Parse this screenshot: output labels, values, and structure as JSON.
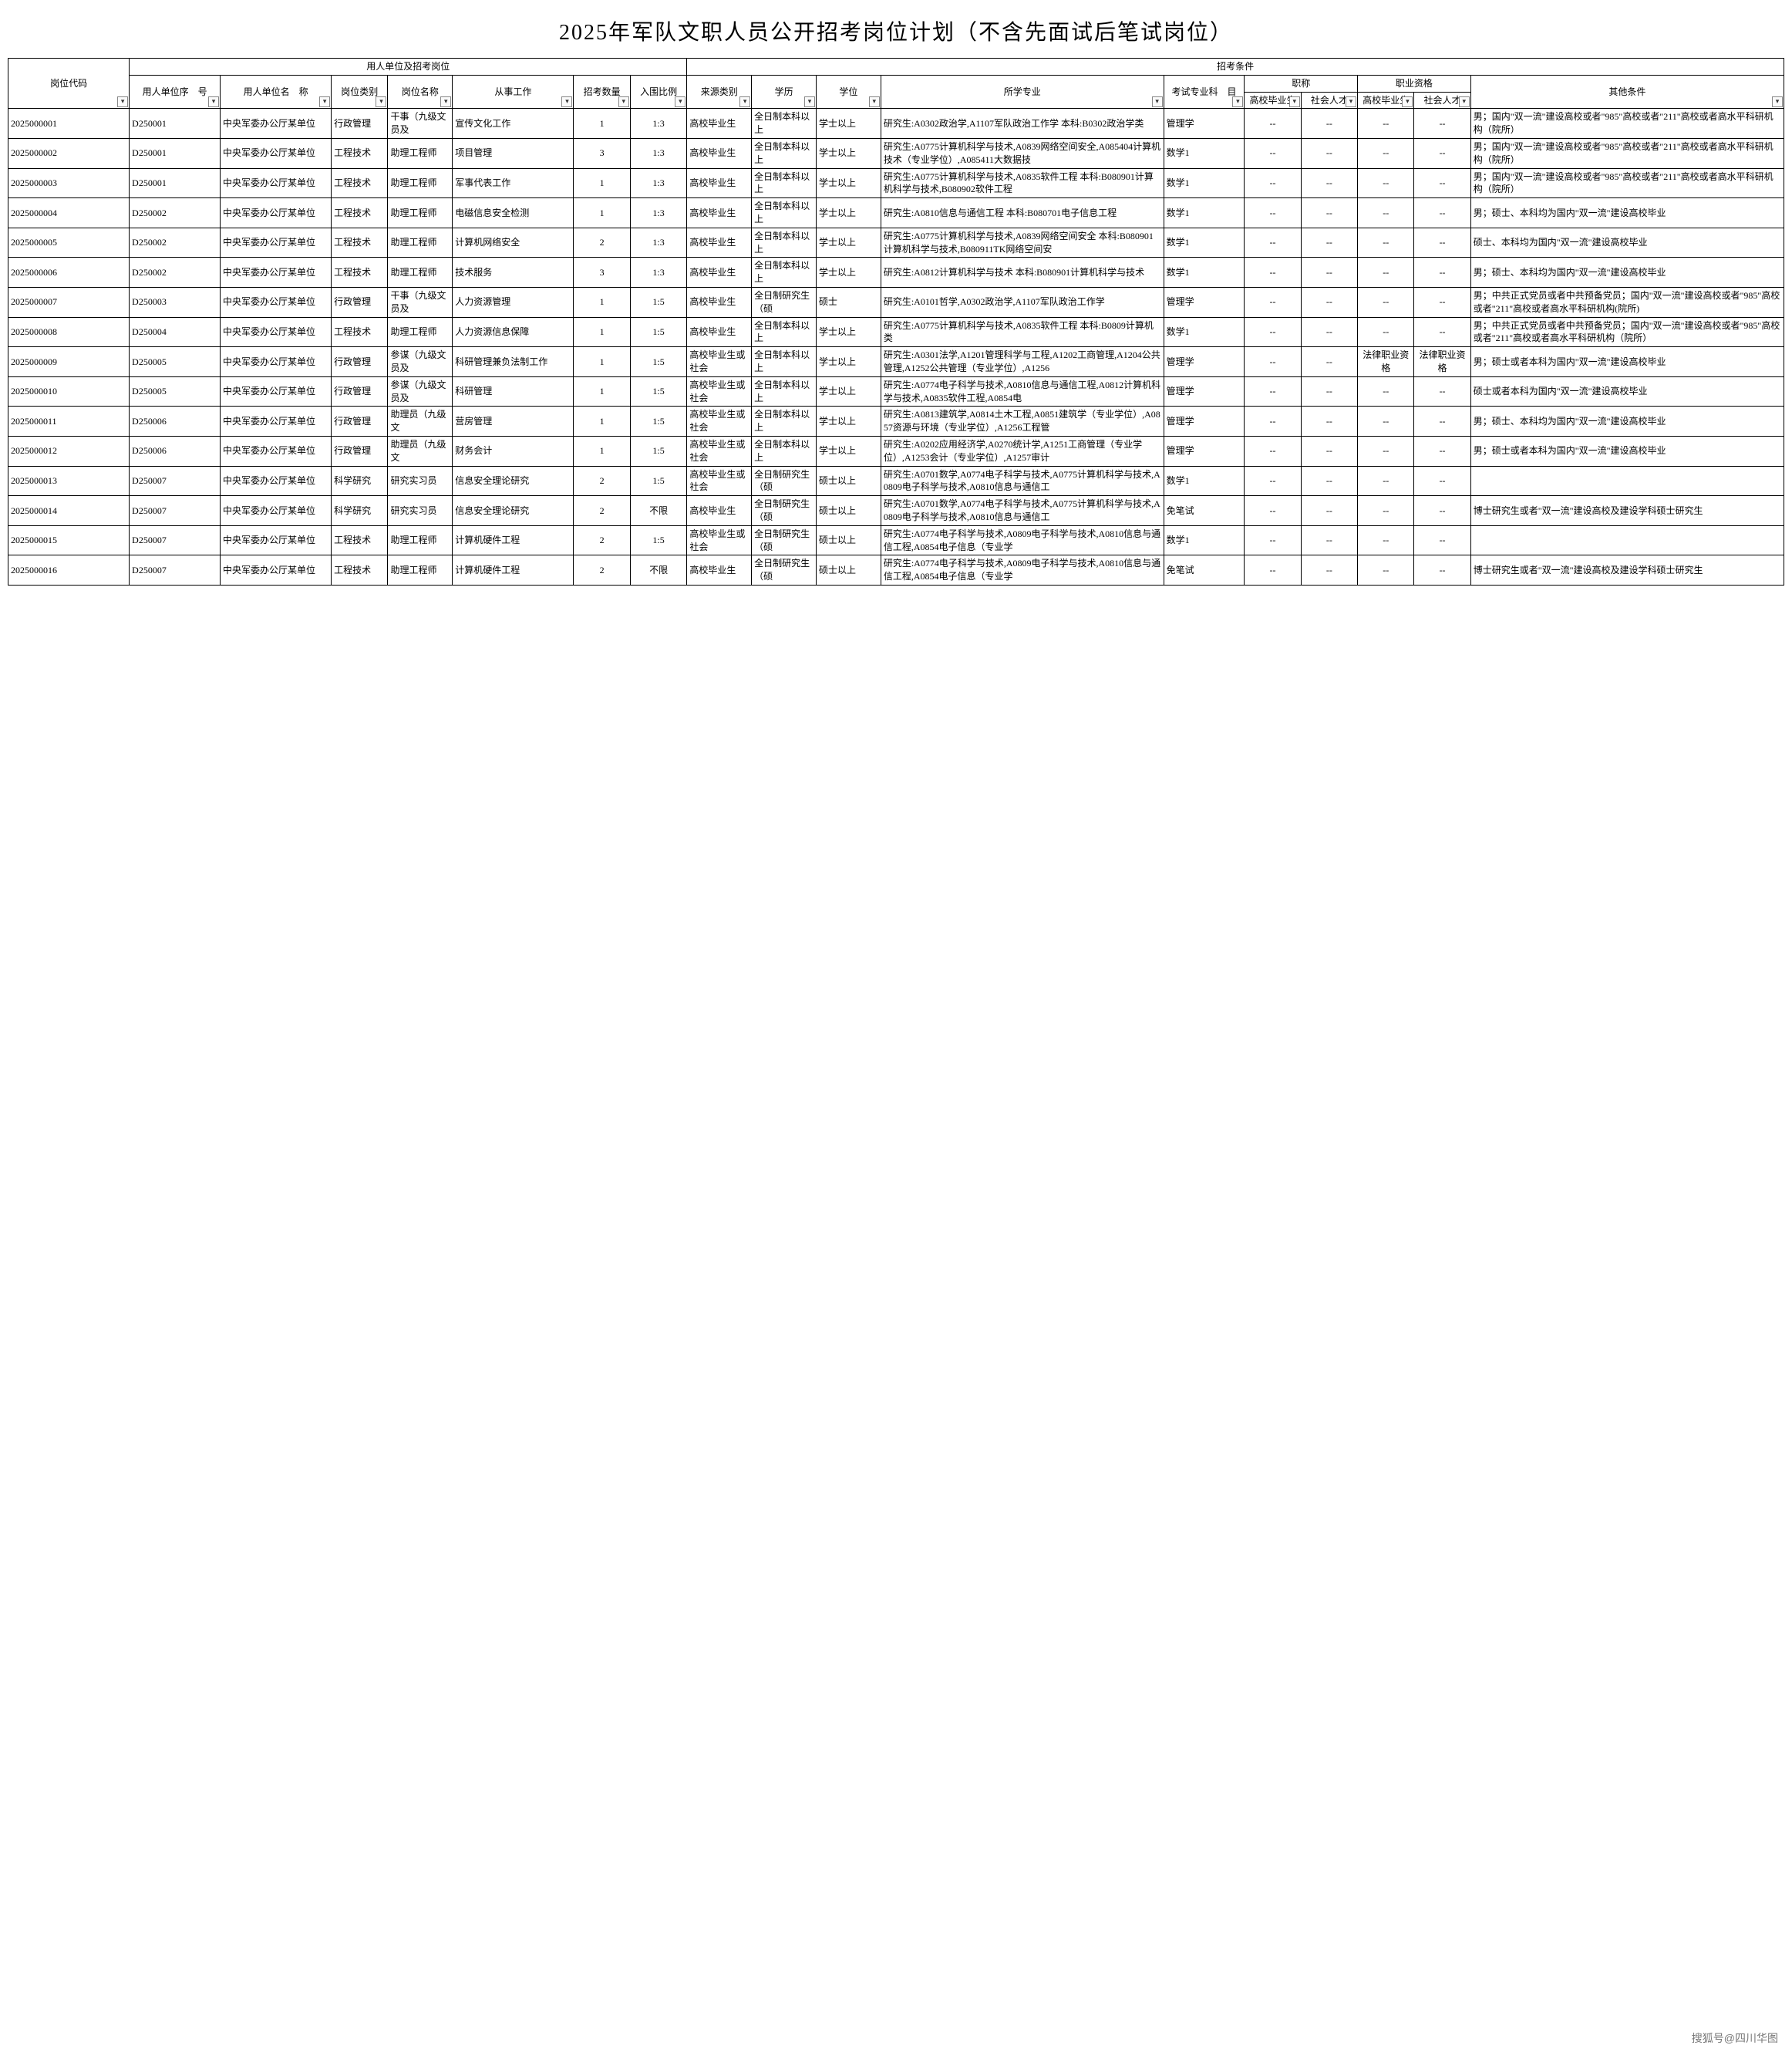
{
  "title": "2025年军队文职人员公开招考岗位计划（不含先面试后笔试岗位）",
  "watermark": "搜狐号@四川华图",
  "headers": {
    "group_left": "用人单位及招考岗位",
    "group_right": "招考条件",
    "code": "岗位代码",
    "unit_no": "用人单位序　号",
    "unit_name": "用人单位名　称",
    "post_type": "岗位类别",
    "post_name": "岗位名称",
    "work": "从事工作",
    "count": "招考数量",
    "ratio": "入围比例",
    "source": "来源类别",
    "edu": "学历",
    "degree": "学位",
    "major": "所学专业",
    "exam_subj": "考试专业科　目",
    "title_group": "职称",
    "qual_group": "职业资格",
    "grad": "高校毕业生",
    "social": "社会人才",
    "other": "其他条件"
  },
  "rows": [
    {
      "code": "2025000001",
      "unit_no": "D250001",
      "unit_name": "中央军委办公厅某单位",
      "post_type": "行政管理",
      "post_name": "干事（九级文员及",
      "work": "宣传文化工作",
      "count": "1",
      "ratio": "1:3",
      "source": "高校毕业生",
      "edu": "全日制本科以上",
      "degree": "学士以上",
      "major": "研究生:A0302政治学,A1107军队政治工作学\n本科:B0302政治学类",
      "exam": "管理学",
      "t1": "--",
      "t2": "--",
      "q1": "--",
      "q2": "--",
      "other": "男；国内\"双一流\"建设高校或者\"985\"高校或者\"211\"高校或者高水平科研机构（院所）"
    },
    {
      "code": "2025000002",
      "unit_no": "D250001",
      "unit_name": "中央军委办公厅某单位",
      "post_type": "工程技术",
      "post_name": "助理工程师",
      "work": "项目管理",
      "count": "3",
      "ratio": "1:3",
      "source": "高校毕业生",
      "edu": "全日制本科以上",
      "degree": "学士以上",
      "major": "研究生:A0775计算机科学与技术,A0839网络空间安全,A085404计算机技术（专业学位）,A085411大数据技",
      "exam": "数学1",
      "t1": "--",
      "t2": "--",
      "q1": "--",
      "q2": "--",
      "other": "男；国内\"双一流\"建设高校或者\"985\"高校或者\"211\"高校或者高水平科研机构（院所）"
    },
    {
      "code": "2025000003",
      "unit_no": "D250001",
      "unit_name": "中央军委办公厅某单位",
      "post_type": "工程技术",
      "post_name": "助理工程师",
      "work": "军事代表工作",
      "count": "1",
      "ratio": "1:3",
      "source": "高校毕业生",
      "edu": "全日制本科以上",
      "degree": "学士以上",
      "major": "研究生:A0775计算机科学与技术,A0835软件工程\n本科:B080901计算机科学与技术,B080902软件工程",
      "exam": "数学1",
      "t1": "--",
      "t2": "--",
      "q1": "--",
      "q2": "--",
      "other": "男；国内\"双一流\"建设高校或者\"985\"高校或者\"211\"高校或者高水平科研机构（院所）"
    },
    {
      "code": "2025000004",
      "unit_no": "D250002",
      "unit_name": "中央军委办公厅某单位",
      "post_type": "工程技术",
      "post_name": "助理工程师",
      "work": "电磁信息安全检测",
      "count": "1",
      "ratio": "1:3",
      "source": "高校毕业生",
      "edu": "全日制本科以上",
      "degree": "学士以上",
      "major": "研究生:A0810信息与通信工程\n本科:B080701电子信息工程",
      "exam": "数学1",
      "t1": "--",
      "t2": "--",
      "q1": "--",
      "q2": "--",
      "other": "男；硕士、本科均为国内\"双一流\"建设高校毕业"
    },
    {
      "code": "2025000005",
      "unit_no": "D250002",
      "unit_name": "中央军委办公厅某单位",
      "post_type": "工程技术",
      "post_name": "助理工程师",
      "work": "计算机网络安全",
      "count": "2",
      "ratio": "1:3",
      "source": "高校毕业生",
      "edu": "全日制本科以上",
      "degree": "学士以上",
      "major": "研究生:A0775计算机科学与技术,A0839网络空间安全\n本科:B080901计算机科学与技术,B080911TK网络空间安",
      "exam": "数学1",
      "t1": "--",
      "t2": "--",
      "q1": "--",
      "q2": "--",
      "other": "硕士、本科均为国内\"双一流\"建设高校毕业"
    },
    {
      "code": "2025000006",
      "unit_no": "D250002",
      "unit_name": "中央军委办公厅某单位",
      "post_type": "工程技术",
      "post_name": "助理工程师",
      "work": "技术服务",
      "count": "3",
      "ratio": "1:3",
      "source": "高校毕业生",
      "edu": "全日制本科以上",
      "degree": "学士以上",
      "major": "研究生:A0812计算机科学与技术\n本科:B080901计算机科学与技术",
      "exam": "数学1",
      "t1": "--",
      "t2": "--",
      "q1": "--",
      "q2": "--",
      "other": "男；硕士、本科均为国内\"双一流\"建设高校毕业"
    },
    {
      "code": "2025000007",
      "unit_no": "D250003",
      "unit_name": "中央军委办公厅某单位",
      "post_type": "行政管理",
      "post_name": "干事（九级文员及",
      "work": "人力资源管理",
      "count": "1",
      "ratio": "1:5",
      "source": "高校毕业生",
      "edu": "全日制研究生（硕",
      "degree": "硕士",
      "major": "研究生:A0101哲学,A0302政治学,A1107军队政治工作学",
      "exam": "管理学",
      "t1": "--",
      "t2": "--",
      "q1": "--",
      "q2": "--",
      "other": "男；中共正式党员或者中共预备党员；国内\"双一流\"建设高校或者\"985\"高校或者\"211\"高校或者高水平科研机构(院所)"
    },
    {
      "code": "2025000008",
      "unit_no": "D250004",
      "unit_name": "中央军委办公厅某单位",
      "post_type": "工程技术",
      "post_name": "助理工程师",
      "work": "人力资源信息保障",
      "count": "1",
      "ratio": "1:5",
      "source": "高校毕业生",
      "edu": "全日制本科以上",
      "degree": "学士以上",
      "major": "研究生:A0775计算机科学与技术,A0835软件工程\n本科:B0809计算机类",
      "exam": "数学1",
      "t1": "--",
      "t2": "--",
      "q1": "--",
      "q2": "--",
      "other": "男；中共正式党员或者中共预备党员；国内\"双一流\"建设高校或者\"985\"高校或者\"211\"高校或者高水平科研机构（院所）"
    },
    {
      "code": "2025000009",
      "unit_no": "D250005",
      "unit_name": "中央军委办公厅某单位",
      "post_type": "行政管理",
      "post_name": "参谋（九级文员及",
      "work": "科研管理兼负法制工作",
      "count": "1",
      "ratio": "1:5",
      "source": "高校毕业生或社会",
      "edu": "全日制本科以上",
      "degree": "学士以上",
      "major": "研究生:A0301法学,A1201管理科学与工程,A1202工商管理,A1204公共管理,A1252公共管理（专业学位）,A1256",
      "exam": "管理学",
      "t1": "--",
      "t2": "--",
      "q1": "法律职业资格",
      "q2": "法律职业资格",
      "other": "男；硕士或者本科为国内\"双一流\"建设高校毕业"
    },
    {
      "code": "2025000010",
      "unit_no": "D250005",
      "unit_name": "中央军委办公厅某单位",
      "post_type": "行政管理",
      "post_name": "参谋（九级文员及",
      "work": "科研管理",
      "count": "1",
      "ratio": "1:5",
      "source": "高校毕业生或社会",
      "edu": "全日制本科以上",
      "degree": "学士以上",
      "major": "研究生:A0774电子科学与技术,A0810信息与通信工程,A0812计算机科学与技术,A0835软件工程,A0854电",
      "exam": "管理学",
      "t1": "--",
      "t2": "--",
      "q1": "--",
      "q2": "--",
      "other": "硕士或者本科为国内\"双一流\"建设高校毕业"
    },
    {
      "code": "2025000011",
      "unit_no": "D250006",
      "unit_name": "中央军委办公厅某单位",
      "post_type": "行政管理",
      "post_name": "助理员（九级文",
      "work": "营房管理",
      "count": "1",
      "ratio": "1:5",
      "source": "高校毕业生或社会",
      "edu": "全日制本科以上",
      "degree": "学士以上",
      "major": "研究生:A0813建筑学,A0814土木工程,A0851建筑学（专业学位）,A0857资源与环境（专业学位）,A1256工程管",
      "exam": "管理学",
      "t1": "--",
      "t2": "--",
      "q1": "--",
      "q2": "--",
      "other": "男；硕士、本科均为国内\"双一流\"建设高校毕业"
    },
    {
      "code": "2025000012",
      "unit_no": "D250006",
      "unit_name": "中央军委办公厅某单位",
      "post_type": "行政管理",
      "post_name": "助理员（九级文",
      "work": "财务会计",
      "count": "1",
      "ratio": "1:5",
      "source": "高校毕业生或社会",
      "edu": "全日制本科以上",
      "degree": "学士以上",
      "major": "研究生:A0202应用经济学,A0270统计学,A1251工商管理（专业学位）,A1253会计（专业学位）,A1257审计",
      "exam": "管理学",
      "t1": "--",
      "t2": "--",
      "q1": "--",
      "q2": "--",
      "other": "男；硕士或者本科为国内\"双一流\"建设高校毕业"
    },
    {
      "code": "2025000013",
      "unit_no": "D250007",
      "unit_name": "中央军委办公厅某单位",
      "post_type": "科学研究",
      "post_name": "研究实习员",
      "work": "信息安全理论研究",
      "count": "2",
      "ratio": "1:5",
      "source": "高校毕业生或社会",
      "edu": "全日制研究生（硕",
      "degree": "硕士以上",
      "major": "研究生:A0701数学,A0774电子科学与技术,A0775计算机科学与技术,A0809电子科学与技术,A0810信息与通信工",
      "exam": "数学1",
      "t1": "--",
      "t2": "--",
      "q1": "--",
      "q2": "--",
      "other": ""
    },
    {
      "code": "2025000014",
      "unit_no": "D250007",
      "unit_name": "中央军委办公厅某单位",
      "post_type": "科学研究",
      "post_name": "研究实习员",
      "work": "信息安全理论研究",
      "count": "2",
      "ratio": "不限",
      "source": "高校毕业生",
      "edu": "全日制研究生（硕",
      "degree": "硕士以上",
      "major": "研究生:A0701数学,A0774电子科学与技术,A0775计算机科学与技术,A0809电子科学与技术,A0810信息与通信工",
      "exam": "免笔试",
      "t1": "--",
      "t2": "--",
      "q1": "--",
      "q2": "--",
      "other": "博士研究生或者\"双一流\"建设高校及建设学科硕士研究生"
    },
    {
      "code": "2025000015",
      "unit_no": "D250007",
      "unit_name": "中央军委办公厅某单位",
      "post_type": "工程技术",
      "post_name": "助理工程师",
      "work": "计算机硬件工程",
      "count": "2",
      "ratio": "1:5",
      "source": "高校毕业生或社会",
      "edu": "全日制研究生（硕",
      "degree": "硕士以上",
      "major": "研究生:A0774电子科学与技术,A0809电子科学与技术,A0810信息与通信工程,A0854电子信息（专业学",
      "exam": "数学1",
      "t1": "--",
      "t2": "--",
      "q1": "--",
      "q2": "--",
      "other": ""
    },
    {
      "code": "2025000016",
      "unit_no": "D250007",
      "unit_name": "中央军委办公厅某单位",
      "post_type": "工程技术",
      "post_name": "助理工程师",
      "work": "计算机硬件工程",
      "count": "2",
      "ratio": "不限",
      "source": "高校毕业生",
      "edu": "全日制研究生（硕",
      "degree": "硕士以上",
      "major": "研究生:A0774电子科学与技术,A0809电子科学与技术,A0810信息与通信工程,A0854电子信息（专业学",
      "exam": "免笔试",
      "t1": "--",
      "t2": "--",
      "q1": "--",
      "q2": "--",
      "other": "博士研究生或者\"双一流\"建设高校及建设学科硕士研究生"
    }
  ]
}
